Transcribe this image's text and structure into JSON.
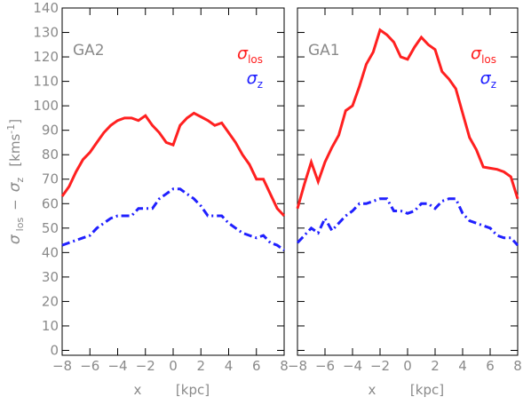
{
  "chart_data": [
    {
      "type": "line",
      "label": "GA2",
      "xlabel": [
        "x",
        "[kpc]"
      ],
      "ylabel": [
        "σ",
        "los",
        "−",
        "σ",
        "z",
        "[kms",
        "-1",
        "]"
      ],
      "x": [
        -8,
        -7.5,
        -7,
        -6.5,
        -6,
        -5.5,
        -5,
        -4.5,
        -4,
        -3.5,
        -3,
        -2.5,
        -2,
        -1.5,
        -1,
        -0.5,
        0,
        0.5,
        1,
        1.5,
        2,
        2.5,
        3,
        3.5,
        4,
        4.5,
        5,
        5.5,
        6,
        6.5,
        7,
        7.5,
        8
      ],
      "series": [
        {
          "name": "σ",
          "subscript": "los",
          "color": "#ff2020",
          "dash": "solid",
          "values": [
            63,
            67,
            73,
            78,
            81,
            85,
            89,
            92,
            94,
            95,
            95,
            94,
            96,
            92,
            89,
            85,
            84,
            92,
            95,
            97,
            95.5,
            94,
            92,
            93,
            89,
            85,
            80,
            76,
            70,
            70,
            64,
            58,
            55
          ]
        },
        {
          "name": "σ",
          "subscript": "z",
          "color": "#2020ff",
          "dash": "dashdot",
          "values": [
            43,
            44,
            45,
            46,
            47,
            50,
            52,
            54,
            55,
            55,
            55,
            58,
            58,
            58,
            62,
            64,
            66,
            66,
            64,
            62,
            59,
            55,
            55,
            55,
            52,
            50,
            48,
            47,
            46,
            47,
            44,
            43,
            41
          ]
        }
      ],
      "xlim": [
        -8,
        8
      ],
      "xticks": [
        {
          "value": -8,
          "label": "−8"
        },
        {
          "value": -6,
          "label": "−6"
        },
        {
          "value": -4,
          "label": "−4"
        },
        {
          "value": -2,
          "label": "−2"
        },
        0,
        2,
        4,
        6,
        8
      ],
      "ylim": [
        -2,
        140
      ],
      "yticks": [
        0,
        10,
        20,
        30,
        40,
        50,
        60,
        70,
        80,
        90,
        100,
        110,
        120,
        130,
        140
      ],
      "ytick_labels": true
    },
    {
      "type": "line",
      "label": "GA1",
      "xlabel": [
        "x",
        "[kpc]"
      ],
      "x": [
        -8,
        -7.5,
        -7,
        -6.5,
        -6,
        -5.5,
        -5,
        -4.5,
        -4,
        -3.5,
        -3,
        -2.5,
        -2,
        -1.5,
        -1,
        -0.5,
        0,
        0.5,
        1,
        1.5,
        2,
        2.5,
        3,
        3.5,
        4,
        4.5,
        5,
        5.5,
        6,
        6.5,
        7,
        7.5,
        8
      ],
      "series": [
        {
          "name": "σ",
          "subscript": "los",
          "color": "#ff2020",
          "dash": "solid",
          "values": [
            58,
            68,
            77,
            69,
            77,
            83,
            88,
            98,
            100,
            108,
            117,
            122,
            131,
            129,
            126,
            120,
            119,
            124,
            128,
            125,
            123,
            114,
            111,
            107,
            97,
            87,
            82,
            75,
            74.5,
            74,
            73,
            71,
            62
          ]
        },
        {
          "name": "σ",
          "subscript": "z",
          "color": "#2020ff",
          "dash": "dashdot",
          "values": [
            44,
            47,
            50,
            48,
            54,
            49,
            52,
            55,
            57,
            60,
            60,
            61,
            62,
            62,
            57,
            57,
            56,
            57,
            60,
            60,
            58,
            61,
            62,
            62,
            56,
            53,
            52,
            51,
            50,
            47,
            46,
            46,
            43
          ]
        }
      ],
      "xlim": [
        -8,
        8
      ],
      "xticks": [
        {
          "value": -8,
          "label": "−8"
        },
        {
          "value": -6,
          "label": "−6"
        },
        {
          "value": -4,
          "label": "−4"
        },
        {
          "value": -2,
          "label": "−2"
        },
        0,
        2,
        4,
        6,
        8
      ],
      "ylim": [
        -2,
        140
      ],
      "yticks": [
        0,
        10,
        20,
        30,
        40,
        50,
        60,
        70,
        80,
        90,
        100,
        110,
        120,
        130,
        140
      ],
      "ytick_labels": false
    }
  ]
}
